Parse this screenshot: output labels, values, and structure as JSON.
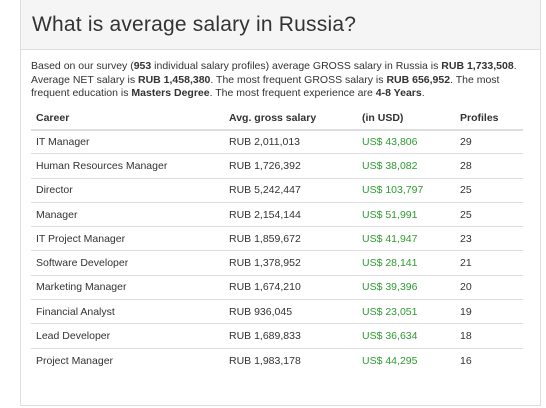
{
  "header": {
    "title": "What is average salary in Russia?"
  },
  "summary": {
    "s1": "Based on our survey (",
    "profiles": "953",
    "s2": " individual salary profiles) average GROSS salary in Russia is ",
    "avg_gross": "RUB 1,733,508",
    "s3": ". Average NET salary is ",
    "avg_net": "RUB 1,458,380",
    "s4": ". The most frequent GROSS salary is ",
    "freq_gross": "RUB 656,952",
    "s5": ". The most frequent education is ",
    "education": "Masters Degree",
    "s6": ". The most frequent experience are ",
    "experience": "4-8 Years",
    "s7": "."
  },
  "table": {
    "headers": [
      "Career",
      "Avg. gross salary",
      "(in USD)",
      "Profiles"
    ],
    "rows": [
      {
        "career": "IT Manager",
        "gross": "RUB 2,011,013",
        "usd": "US$ 43,806",
        "profiles": "29"
      },
      {
        "career": "Human Resources Manager",
        "gross": "RUB 1,726,392",
        "usd": "US$ 38,082",
        "profiles": "28"
      },
      {
        "career": "Director",
        "gross": "RUB 5,242,447",
        "usd": "US$ 103,797",
        "profiles": "25"
      },
      {
        "career": "Manager",
        "gross": "RUB 2,154,144",
        "usd": "US$ 51,991",
        "profiles": "25"
      },
      {
        "career": "IT Project Manager",
        "gross": "RUB 1,859,672",
        "usd": "US$ 41,947",
        "profiles": "23"
      },
      {
        "career": "Software Developer",
        "gross": "RUB 1,378,952",
        "usd": "US$ 28,141",
        "profiles": "21"
      },
      {
        "career": "Marketing Manager",
        "gross": "RUB 1,674,210",
        "usd": "US$ 39,396",
        "profiles": "20"
      },
      {
        "career": "Financial Analyst",
        "gross": "RUB 936,045",
        "usd": "US$ 23,051",
        "profiles": "19"
      },
      {
        "career": "Lead Developer",
        "gross": "RUB 1,689,833",
        "usd": "US$ 36,634",
        "profiles": "18"
      },
      {
        "career": "Project Manager",
        "gross": "RUB 1,983,178",
        "usd": "US$ 44,295",
        "profiles": "16"
      }
    ]
  },
  "colors": {
    "usd_green": "#2e9c2e",
    "heading_bg": "#f5f5f5",
    "border": "#dddddd"
  }
}
